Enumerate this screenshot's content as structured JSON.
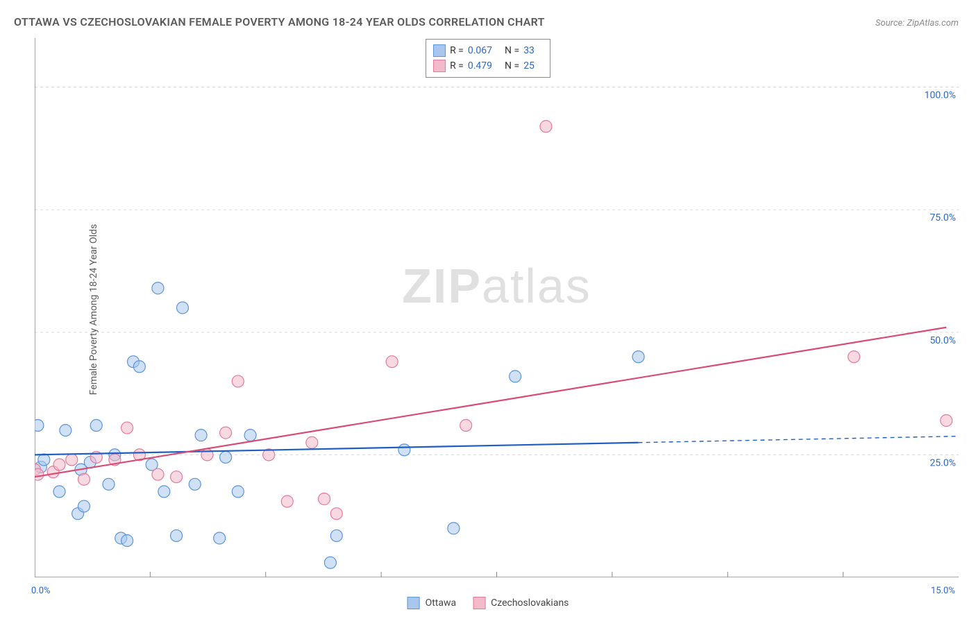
{
  "title": "OTTAWA VS CZECHOSLOVAKIAN FEMALE POVERTY AMONG 18-24 YEAR OLDS CORRELATION CHART",
  "source": "Source: ZipAtlas.com",
  "y_axis_label": "Female Poverty Among 18-24 Year Olds",
  "watermark": {
    "bold": "ZIP",
    "rest": "atlas"
  },
  "chart": {
    "type": "scatter_with_regression",
    "xlim": [
      0,
      15
    ],
    "ylim": [
      0,
      110
    ],
    "x_ticks": [
      0,
      15
    ],
    "x_tick_labels": [
      "0.0%",
      "15.0%"
    ],
    "x_minor_ticks": [
      1.875,
      3.75,
      5.625,
      7.5,
      9.375,
      11.25,
      13.125
    ],
    "y_ticks": [
      25,
      50,
      75,
      100
    ],
    "y_tick_labels": [
      "25.0%",
      "50.0%",
      "75.0%",
      "100.0%"
    ],
    "grid_color": "#d8d8d8",
    "axis_color": "#888888",
    "background_color": "#ffffff",
    "axis_label_color": "#2968c8",
    "marker_radius": 8.5,
    "marker_stroke_width": 1.2,
    "line_width": 2.2,
    "series": [
      {
        "name": "Ottawa",
        "fill": "#a9c7ec",
        "stroke": "#5a95d8",
        "fill_opacity": 0.55,
        "line_color": "#1f5fc4",
        "R": "0.067",
        "N": "33",
        "regression": {
          "x1": 0,
          "y1": 25,
          "x2": 9.8,
          "y2": 27.5,
          "dash_x1": 9.8,
          "dash_y1": 27.5,
          "dash_x2": 15,
          "dash_y2": 28.8
        },
        "points": [
          [
            0.05,
            31
          ],
          [
            0.1,
            22.5
          ],
          [
            0.15,
            24
          ],
          [
            0.4,
            17.5
          ],
          [
            0.5,
            30
          ],
          [
            0.7,
            13
          ],
          [
            0.75,
            22
          ],
          [
            0.8,
            14.5
          ],
          [
            0.9,
            23.5
          ],
          [
            1.0,
            31
          ],
          [
            1.2,
            19
          ],
          [
            1.3,
            25
          ],
          [
            1.4,
            8
          ],
          [
            1.5,
            7.5
          ],
          [
            1.6,
            44
          ],
          [
            1.7,
            43
          ],
          [
            1.9,
            23
          ],
          [
            2.0,
            59
          ],
          [
            2.1,
            17.5
          ],
          [
            2.3,
            8.5
          ],
          [
            2.4,
            55
          ],
          [
            2.6,
            19
          ],
          [
            2.7,
            29
          ],
          [
            3.0,
            8
          ],
          [
            3.1,
            24.5
          ],
          [
            3.3,
            17.5
          ],
          [
            3.5,
            29
          ],
          [
            4.8,
            3
          ],
          [
            4.9,
            8.5
          ],
          [
            6.0,
            26
          ],
          [
            6.8,
            10
          ],
          [
            7.8,
            41
          ],
          [
            9.8,
            45
          ]
        ]
      },
      {
        "name": "Czechoslovakians",
        "fill": "#f3bac9",
        "stroke": "#e47a9a",
        "fill_opacity": 0.55,
        "line_color": "#d94a74",
        "R": "0.479",
        "N": "25",
        "regression": {
          "x1": 0,
          "y1": 20.5,
          "x2": 14.8,
          "y2": 51,
          "dash_x1": null
        },
        "points": [
          [
            0.0,
            22
          ],
          [
            0.05,
            21
          ],
          [
            0.3,
            21.5
          ],
          [
            0.4,
            23
          ],
          [
            0.6,
            24
          ],
          [
            0.8,
            20
          ],
          [
            1.0,
            24.5
          ],
          [
            1.3,
            24
          ],
          [
            1.5,
            30.5
          ],
          [
            1.7,
            25
          ],
          [
            2.0,
            21
          ],
          [
            2.3,
            20.5
          ],
          [
            2.8,
            25
          ],
          [
            3.1,
            29.5
          ],
          [
            3.3,
            40
          ],
          [
            3.8,
            25
          ],
          [
            4.1,
            15.5
          ],
          [
            4.5,
            27.5
          ],
          [
            4.7,
            16
          ],
          [
            4.9,
            13
          ],
          [
            5.8,
            44
          ],
          [
            7.0,
            31
          ],
          [
            8.3,
            92
          ],
          [
            13.3,
            45
          ],
          [
            14.8,
            32
          ]
        ]
      }
    ]
  },
  "bottom_legend": [
    "Ottawa",
    "Czechoslovakians"
  ]
}
